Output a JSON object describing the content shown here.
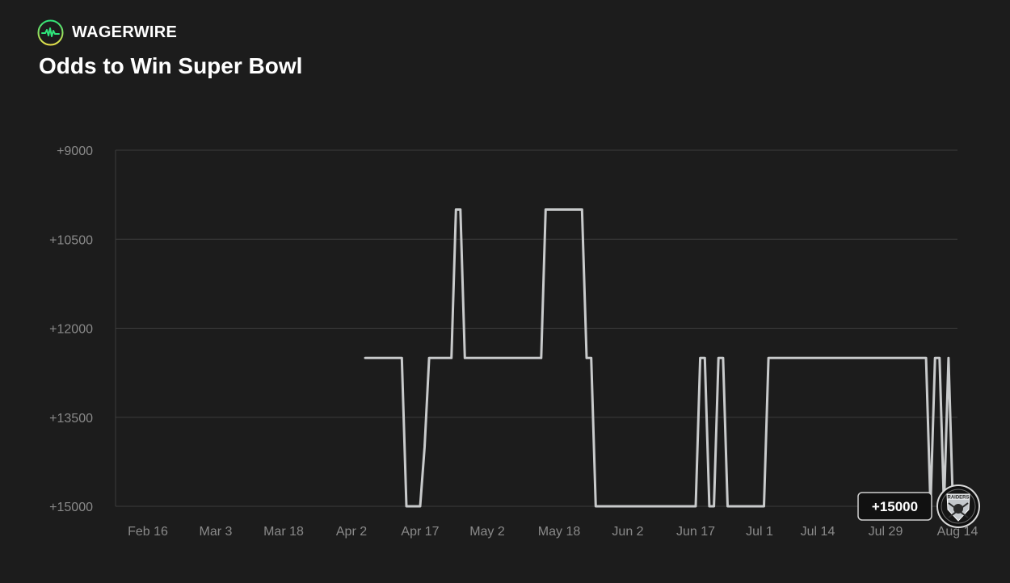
{
  "brand": {
    "name": "WAGERWIRE",
    "accent_colors": [
      "#2ee57a",
      "#e8e04a"
    ]
  },
  "header": {
    "title": "Odds to Win Super Bowl"
  },
  "chart_data": {
    "type": "line",
    "title": "Odds to Win Super Bowl",
    "xlabel": "",
    "ylabel": "",
    "y_ticks": [
      "+9000",
      "+10500",
      "+12000",
      "+13500",
      "+15000"
    ],
    "ylim": [
      9000,
      15000
    ],
    "y_axis_inverted": true,
    "x_ticks": [
      "Feb 16",
      "Mar 3",
      "Mar 18",
      "Apr 2",
      "Apr 17",
      "May 2",
      "May 18",
      "Jun 2",
      "Jun 17",
      "Jul 1",
      "Jul 14",
      "Jul 29",
      "Aug 14"
    ],
    "grid": true,
    "line_color": "#c8cacb",
    "series": [
      {
        "x": [
          "Apr 5",
          "Apr 13",
          "Apr 14",
          "Apr 17",
          "Apr 18",
          "Apr 19",
          "Apr 24",
          "Apr 25",
          "Apr 26",
          "Apr 27",
          "Apr 28",
          "Apr 29",
          "May 14",
          "May 15",
          "May 23",
          "May 24",
          "May 25",
          "May 26",
          "Jun 17",
          "Jun 18",
          "Jun 19",
          "Jun 20",
          "Jun 21",
          "Jun 22",
          "Jun 23",
          "Jun 24",
          "Jun 25",
          "Jun 26",
          "Jul 2",
          "Jul 3",
          "Aug 7",
          "Aug 8",
          "Aug 9",
          "Aug 10",
          "Aug 11",
          "Aug 12",
          "Aug 13"
        ],
        "y": [
          12500,
          12500,
          15000,
          15000,
          14000,
          12500,
          12500,
          10000,
          10000,
          12500,
          12500,
          12500,
          12500,
          10000,
          10000,
          12500,
          12500,
          15000,
          15000,
          12500,
          12500,
          15000,
          15000,
          12500,
          12500,
          15000,
          15000,
          15000,
          15000,
          12500,
          12500,
          15000,
          12500,
          12500,
          15000,
          12500,
          15000
        ]
      }
    ],
    "current_value_label": "+15000",
    "current_value": 15000,
    "team_logo": "raiders-shield-logo",
    "team_logo_text": "RAIDERS"
  }
}
